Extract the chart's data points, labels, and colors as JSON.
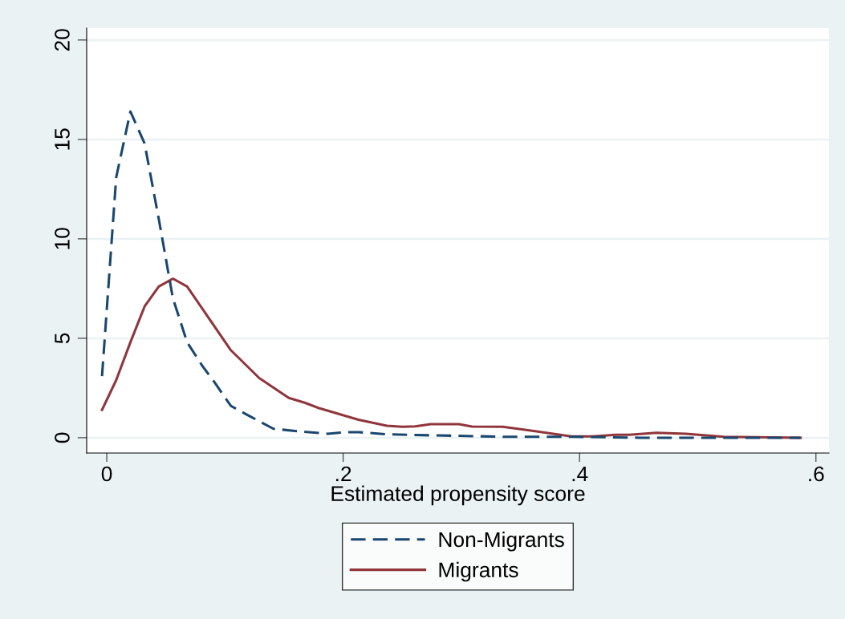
{
  "chart_data": {
    "type": "line",
    "xlabel": "Estimated propensity score",
    "xlim": [
      -0.017,
      0.611
    ],
    "xticks": [
      {
        "value": 0,
        "label": "0"
      },
      {
        "value": 0.2,
        "label": ".2"
      },
      {
        "value": 0.4,
        "label": ".4"
      },
      {
        "value": 0.6,
        "label": ".6"
      }
    ],
    "ylim": [
      -0.77,
      20.6
    ],
    "yticks": [
      0,
      5,
      10,
      15,
      20
    ],
    "grid": "y",
    "legend": "bottom",
    "marker": "none",
    "series": [
      {
        "name": "Non-Migrants",
        "color": "#1a476f",
        "line_style": "dashed",
        "x": [
          -0.004,
          0.008,
          0.02,
          0.032,
          0.044,
          0.056,
          0.068,
          0.081,
          0.091,
          0.105,
          0.122,
          0.141,
          0.166,
          0.187,
          0.202,
          0.213,
          0.238,
          0.275,
          0.335,
          0.394,
          0.45,
          0.52,
          0.587
        ],
        "values": [
          3.1,
          13.1,
          16.4,
          14.8,
          11.0,
          7.0,
          4.8,
          3.6,
          2.8,
          1.6,
          1.05,
          0.45,
          0.3,
          0.2,
          0.28,
          0.28,
          0.17,
          0.12,
          0.05,
          0.05,
          0,
          0,
          0
        ]
      },
      {
        "name": "Migrants",
        "color": "#90353b",
        "line_style": "solid",
        "x": [
          -0.004,
          0.008,
          0.02,
          0.032,
          0.044,
          0.056,
          0.068,
          0.105,
          0.129,
          0.154,
          0.168,
          0.179,
          0.213,
          0.237,
          0.25,
          0.261,
          0.274,
          0.298,
          0.309,
          0.335,
          0.36,
          0.393,
          0.411,
          0.431,
          0.442,
          0.465,
          0.49,
          0.522,
          0.587
        ],
        "values": [
          1.4,
          2.9,
          4.8,
          6.6,
          7.6,
          8.0,
          7.6,
          4.4,
          3.0,
          2.0,
          1.75,
          1.5,
          0.9,
          0.6,
          0.55,
          0.57,
          0.68,
          0.68,
          0.56,
          0.55,
          0.35,
          0.07,
          0.07,
          0.15,
          0.15,
          0.25,
          0.2,
          0.05,
          0
        ]
      }
    ]
  }
}
